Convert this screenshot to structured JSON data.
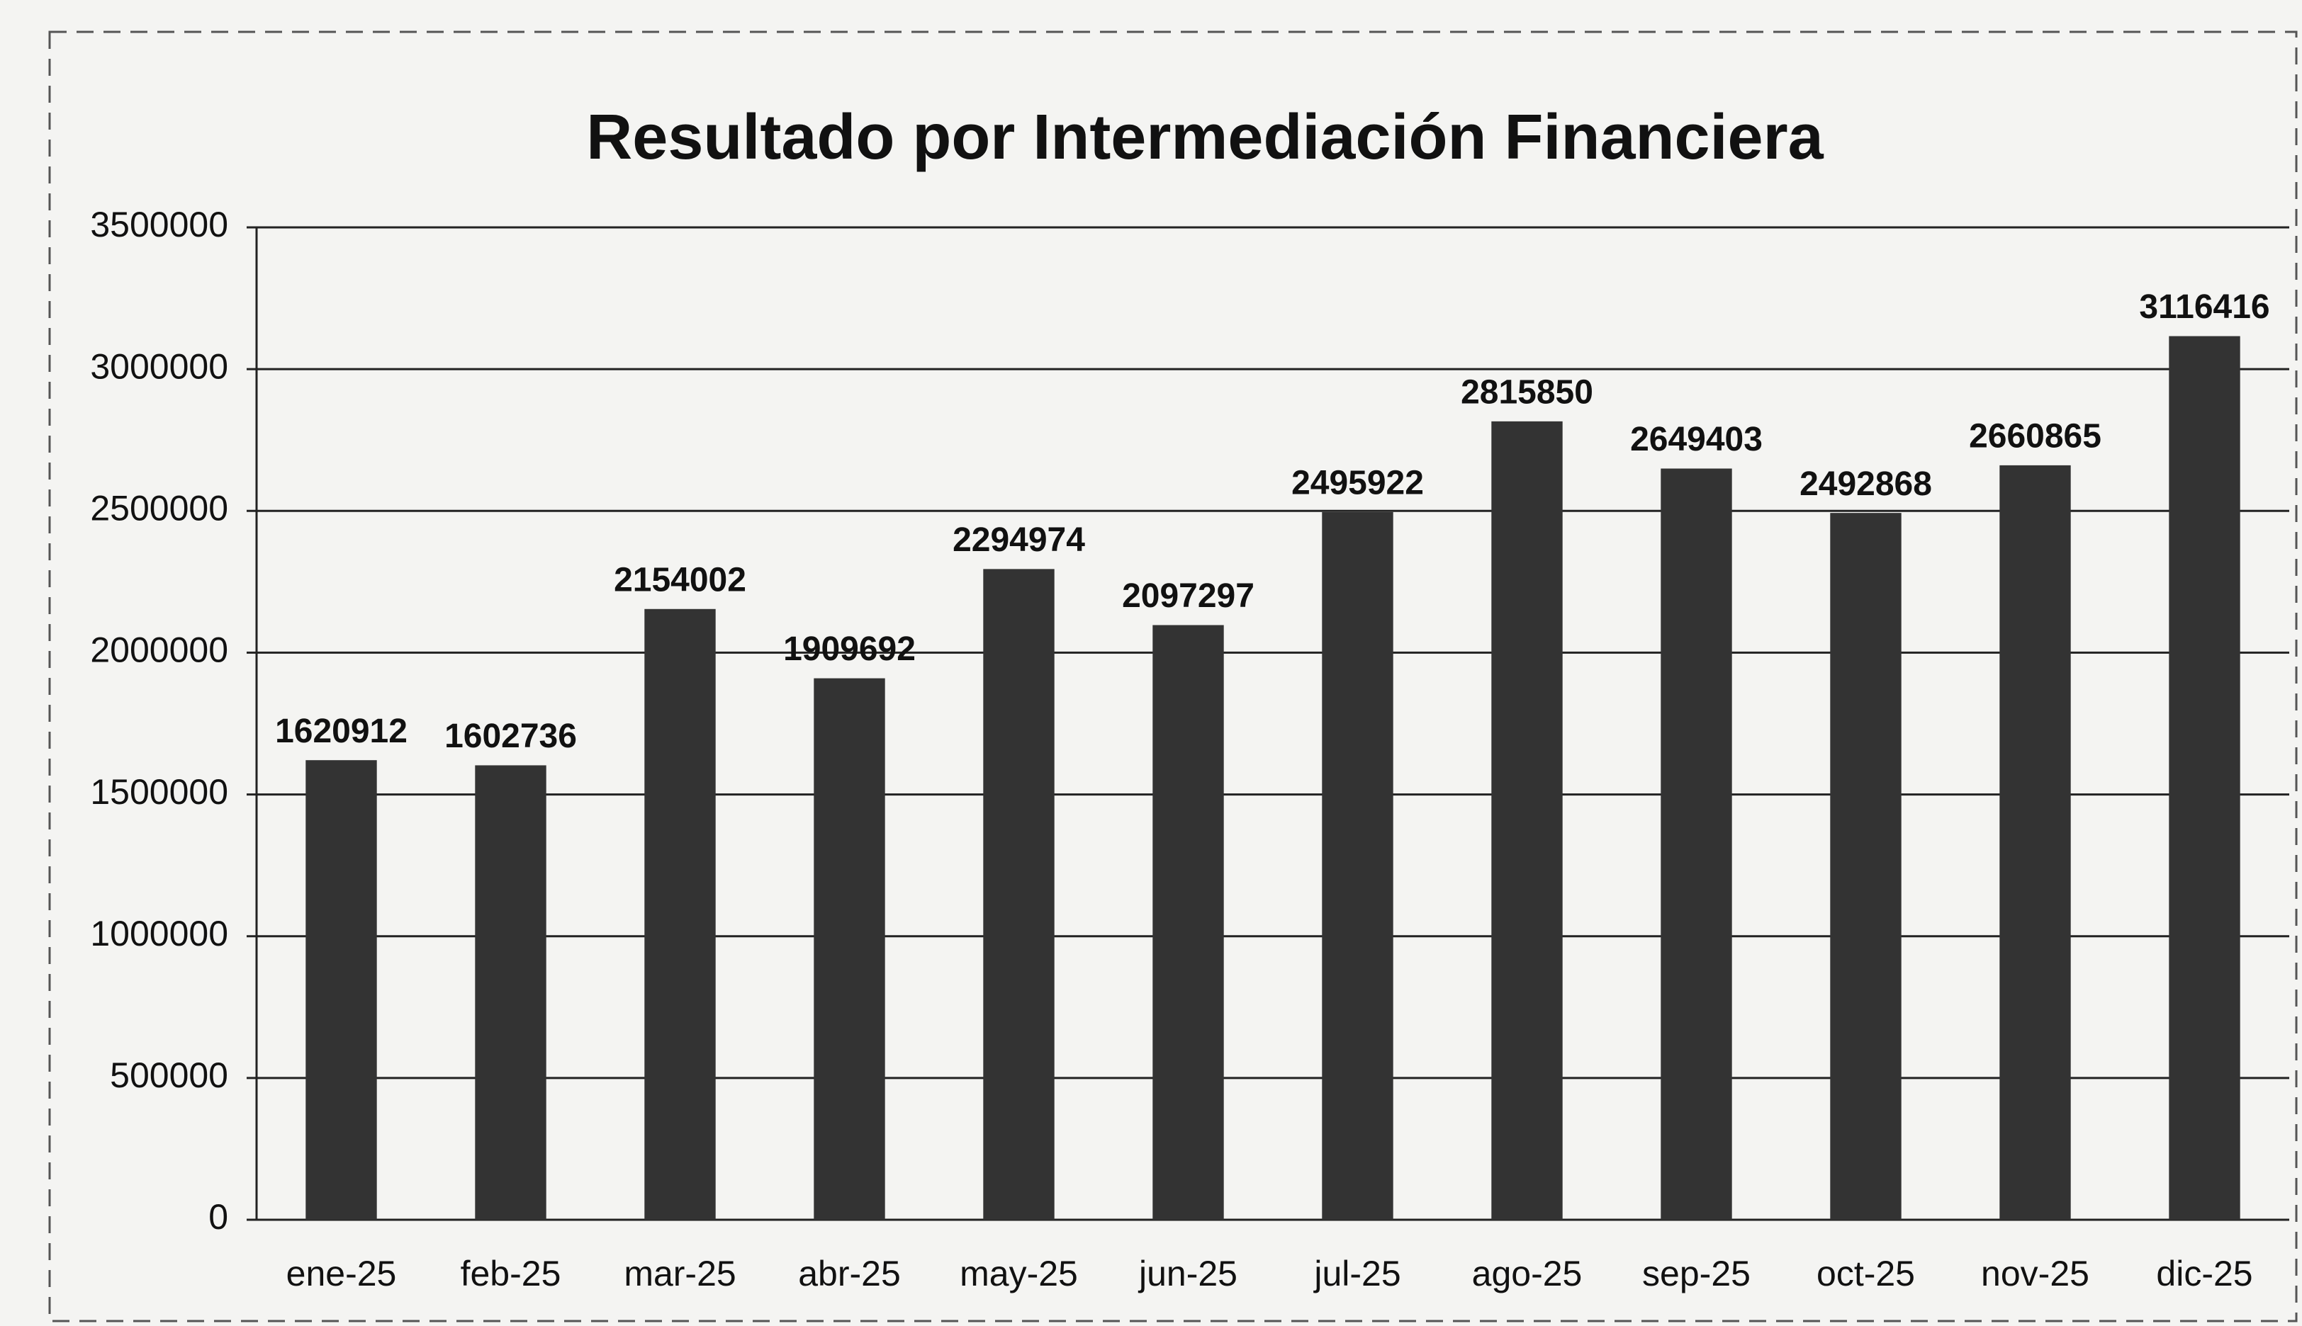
{
  "chart_data": {
    "type": "bar",
    "title": "Resultado por Intermediación Financiera",
    "categories": [
      "ene-25",
      "feb-25",
      "mar-25",
      "abr-25",
      "may-25",
      "jun-25",
      "jul-25",
      "ago-25",
      "sep-25",
      "oct-25",
      "nov-25",
      "dic-25"
    ],
    "values": [
      1620912,
      1602736,
      2154002,
      1909692,
      2294974,
      2097297,
      2495922,
      2815850,
      2649403,
      2492868,
      2660865,
      3116416
    ],
    "color": "#333333",
    "ylim": [
      0,
      3500000
    ],
    "yticks": [
      0,
      500000,
      1000000,
      1500000,
      2000000,
      2500000,
      3000000,
      3500000
    ],
    "grid": true
  }
}
